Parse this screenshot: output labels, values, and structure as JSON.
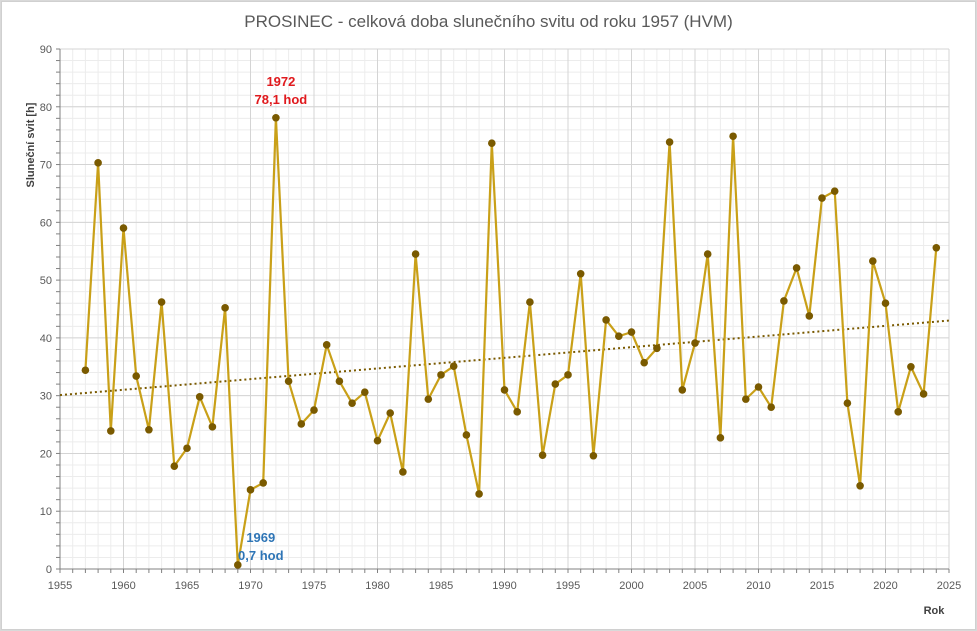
{
  "chart_data": {
    "type": "line",
    "title": "PROSINEC - celková doba slunečního svitu od roku 1957 (HVM)",
    "xlabel": "Rok",
    "ylabel": "Sluneční svit [h]",
    "xlim": [
      1955,
      2025
    ],
    "ylim": [
      0,
      90
    ],
    "x_ticks": [
      "1955",
      "1960",
      "1965",
      "1970",
      "1975",
      "1980",
      "1985",
      "1990",
      "1995",
      "2000",
      "2005",
      "2010",
      "2015",
      "2020",
      "2025"
    ],
    "y_ticks": [
      "0",
      "10",
      "20",
      "30",
      "40",
      "50",
      "60",
      "70",
      "80",
      "90"
    ],
    "grid": true,
    "x": [
      1957,
      1958,
      1959,
      1960,
      1961,
      1962,
      1963,
      1964,
      1965,
      1966,
      1967,
      1968,
      1969,
      1970,
      1971,
      1972,
      1973,
      1974,
      1975,
      1976,
      1977,
      1978,
      1979,
      1980,
      1981,
      1982,
      1983,
      1984,
      1985,
      1986,
      1987,
      1988,
      1989,
      1990,
      1991,
      1992,
      1993,
      1994,
      1995,
      1996,
      1997,
      1998,
      1999,
      2000,
      2001,
      2002,
      2003,
      2004,
      2005,
      2006,
      2007,
      2008,
      2009,
      2010,
      2011,
      2012,
      2013,
      2014,
      2015,
      2016,
      2017,
      2018,
      2019,
      2020,
      2021,
      2022,
      2023,
      2024
    ],
    "series": [
      {
        "name": "Sluneční svit",
        "color": "#c9a018",
        "marker_color": "#7a5a00",
        "values": [
          34.4,
          70.3,
          23.9,
          59.0,
          33.4,
          24.1,
          46.2,
          17.8,
          20.9,
          29.8,
          24.6,
          45.2,
          0.7,
          13.7,
          14.9,
          78.1,
          32.5,
          25.1,
          27.5,
          38.8,
          32.5,
          28.7,
          30.6,
          22.2,
          27.0,
          16.8,
          54.5,
          29.4,
          33.6,
          35.1,
          23.2,
          13.0,
          73.7,
          31.0,
          27.2,
          46.2,
          19.7,
          32.0,
          33.6,
          51.1,
          19.6,
          43.1,
          40.3,
          41.0,
          35.7,
          38.2,
          73.9,
          31.0,
          39.1,
          54.5,
          22.7,
          74.9,
          29.4,
          31.5,
          28.0,
          46.4,
          52.1,
          43.8,
          64.2,
          65.4,
          28.7,
          14.4,
          53.3,
          46.0,
          27.2,
          35.0,
          30.3,
          55.6
        ]
      }
    ],
    "trendline": {
      "type": "linear",
      "x": [
        1955,
        2025
      ],
      "y": [
        30.1,
        43.0
      ],
      "color": "#7a5a00",
      "style": "dotted"
    },
    "annotations": [
      {
        "year_label": "1972",
        "value_label": "78,1 hod",
        "x": 1972,
        "y": 78.1,
        "color": "#e0191d",
        "kind": "max"
      },
      {
        "year_label": "1969",
        "value_label": "0,7 hod",
        "x": 1969,
        "y": 0.7,
        "color": "#2e75b6",
        "kind": "min"
      }
    ]
  }
}
